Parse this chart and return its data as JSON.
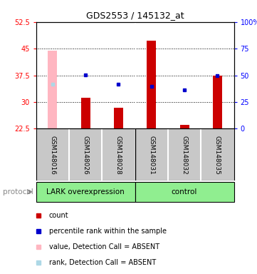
{
  "title": "GDS2553 / 145132_at",
  "samples": [
    "GSM148016",
    "GSM148026",
    "GSM148028",
    "GSM148031",
    "GSM148032",
    "GSM148035"
  ],
  "ylim_left": [
    22.5,
    52.5
  ],
  "ylim_right": [
    0,
    100
  ],
  "yticks_left": [
    22.5,
    30,
    37.5,
    45,
    52.5
  ],
  "ytick_labels_left": [
    "22.5",
    "30",
    "37.5",
    "45",
    "52.5"
  ],
  "yticks_right": [
    0,
    25,
    50,
    75,
    100
  ],
  "ytick_labels_right": [
    "0",
    "25",
    "50",
    "75",
    "100%"
  ],
  "bar_bottom": 22.5,
  "count_bars": [
    null,
    31.2,
    28.5,
    47.2,
    23.5,
    37.5
  ],
  "absent_bars": [
    44.5,
    null,
    null,
    null,
    null,
    null
  ],
  "percentile_rank": [
    null,
    37.6,
    35.0,
    34.5,
    33.5,
    37.5
  ],
  "absent_rank": [
    35.0,
    null,
    null,
    null,
    null,
    null
  ],
  "bar_color_red": "#CC0000",
  "bar_color_pink": "#FFB6C1",
  "marker_color_blue": "#0000CC",
  "marker_color_lightblue": "#ADD8E6",
  "bar_width": 0.28,
  "grid_lines": [
    30,
    37.5,
    45
  ],
  "group_split": 3,
  "group_labels": [
    "LARK overexpression",
    "control"
  ],
  "group_color": "#90EE90",
  "sample_bg_color": "#C8C8C8",
  "protocol_label": "protocol",
  "legend_items": [
    {
      "color": "#CC0000",
      "label": "count"
    },
    {
      "color": "#0000CC",
      "label": "percentile rank within the sample"
    },
    {
      "color": "#FFB6C1",
      "label": "value, Detection Call = ABSENT"
    },
    {
      "color": "#ADD8E6",
      "label": "rank, Detection Call = ABSENT"
    }
  ],
  "background_color": "#ffffff"
}
